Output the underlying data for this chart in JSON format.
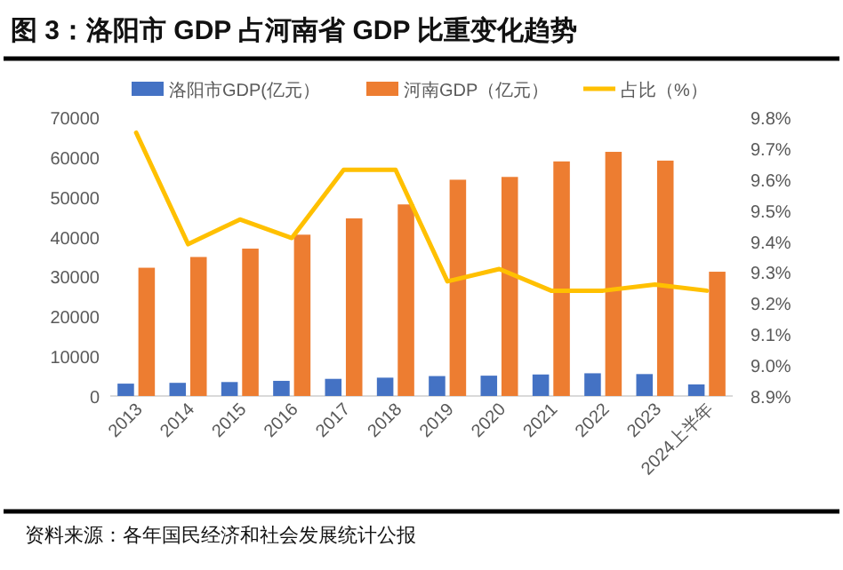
{
  "chart_data": {
    "type": "bar",
    "title": "图 3：洛阳市 GDP 占河南省 GDP 比重变化趋势",
    "categories": [
      "2013",
      "2014",
      "2015",
      "2016",
      "2017",
      "2018",
      "2019",
      "2020",
      "2021",
      "2022",
      "2023",
      "2024上半年"
    ],
    "series": [
      {
        "name": "洛阳市GDP(亿元）",
        "color": "#4472c4",
        "values": [
          3100,
          3300,
          3500,
          3800,
          4300,
          4600,
          5000,
          5100,
          5400,
          5700,
          5500,
          2900
        ]
      },
      {
        "name": "河南GDP（亿元）",
        "color": "#ed7d31",
        "values": [
          32200,
          34900,
          37000,
          40500,
          44600,
          48100,
          54300,
          55000,
          58900,
          61300,
          59100,
          31200
        ]
      },
      {
        "name": "占比（%）",
        "color": "#ffc000",
        "type": "line",
        "axis": "y2",
        "values": [
          9.75,
          9.39,
          9.47,
          9.41,
          9.63,
          9.63,
          9.27,
          9.31,
          9.24,
          9.24,
          9.26,
          9.24
        ]
      }
    ],
    "ylim": [
      0,
      70000
    ],
    "yticks": [
      0,
      10000,
      20000,
      30000,
      40000,
      50000,
      60000,
      70000
    ],
    "y2lim": [
      8.9,
      9.8
    ],
    "y2ticks": [
      {
        "value": 8.9,
        "label": "8.9%"
      },
      {
        "value": 9.0,
        "label": "9.0%"
      },
      {
        "value": 9.1,
        "label": "9.1%"
      },
      {
        "value": 9.2,
        "label": "9.2%"
      },
      {
        "value": 9.3,
        "label": "9.3%"
      },
      {
        "value": 9.4,
        "label": "9.4%"
      },
      {
        "value": 9.5,
        "label": "9.5%"
      },
      {
        "value": 9.6,
        "label": "9.6%"
      },
      {
        "value": 9.7,
        "label": "9.7%"
      },
      {
        "value": 9.8,
        "label": "9.8%"
      }
    ],
    "legend": "top",
    "annotations": [
      "资料来源：各年国民经济和社会发展统计公报"
    ]
  }
}
